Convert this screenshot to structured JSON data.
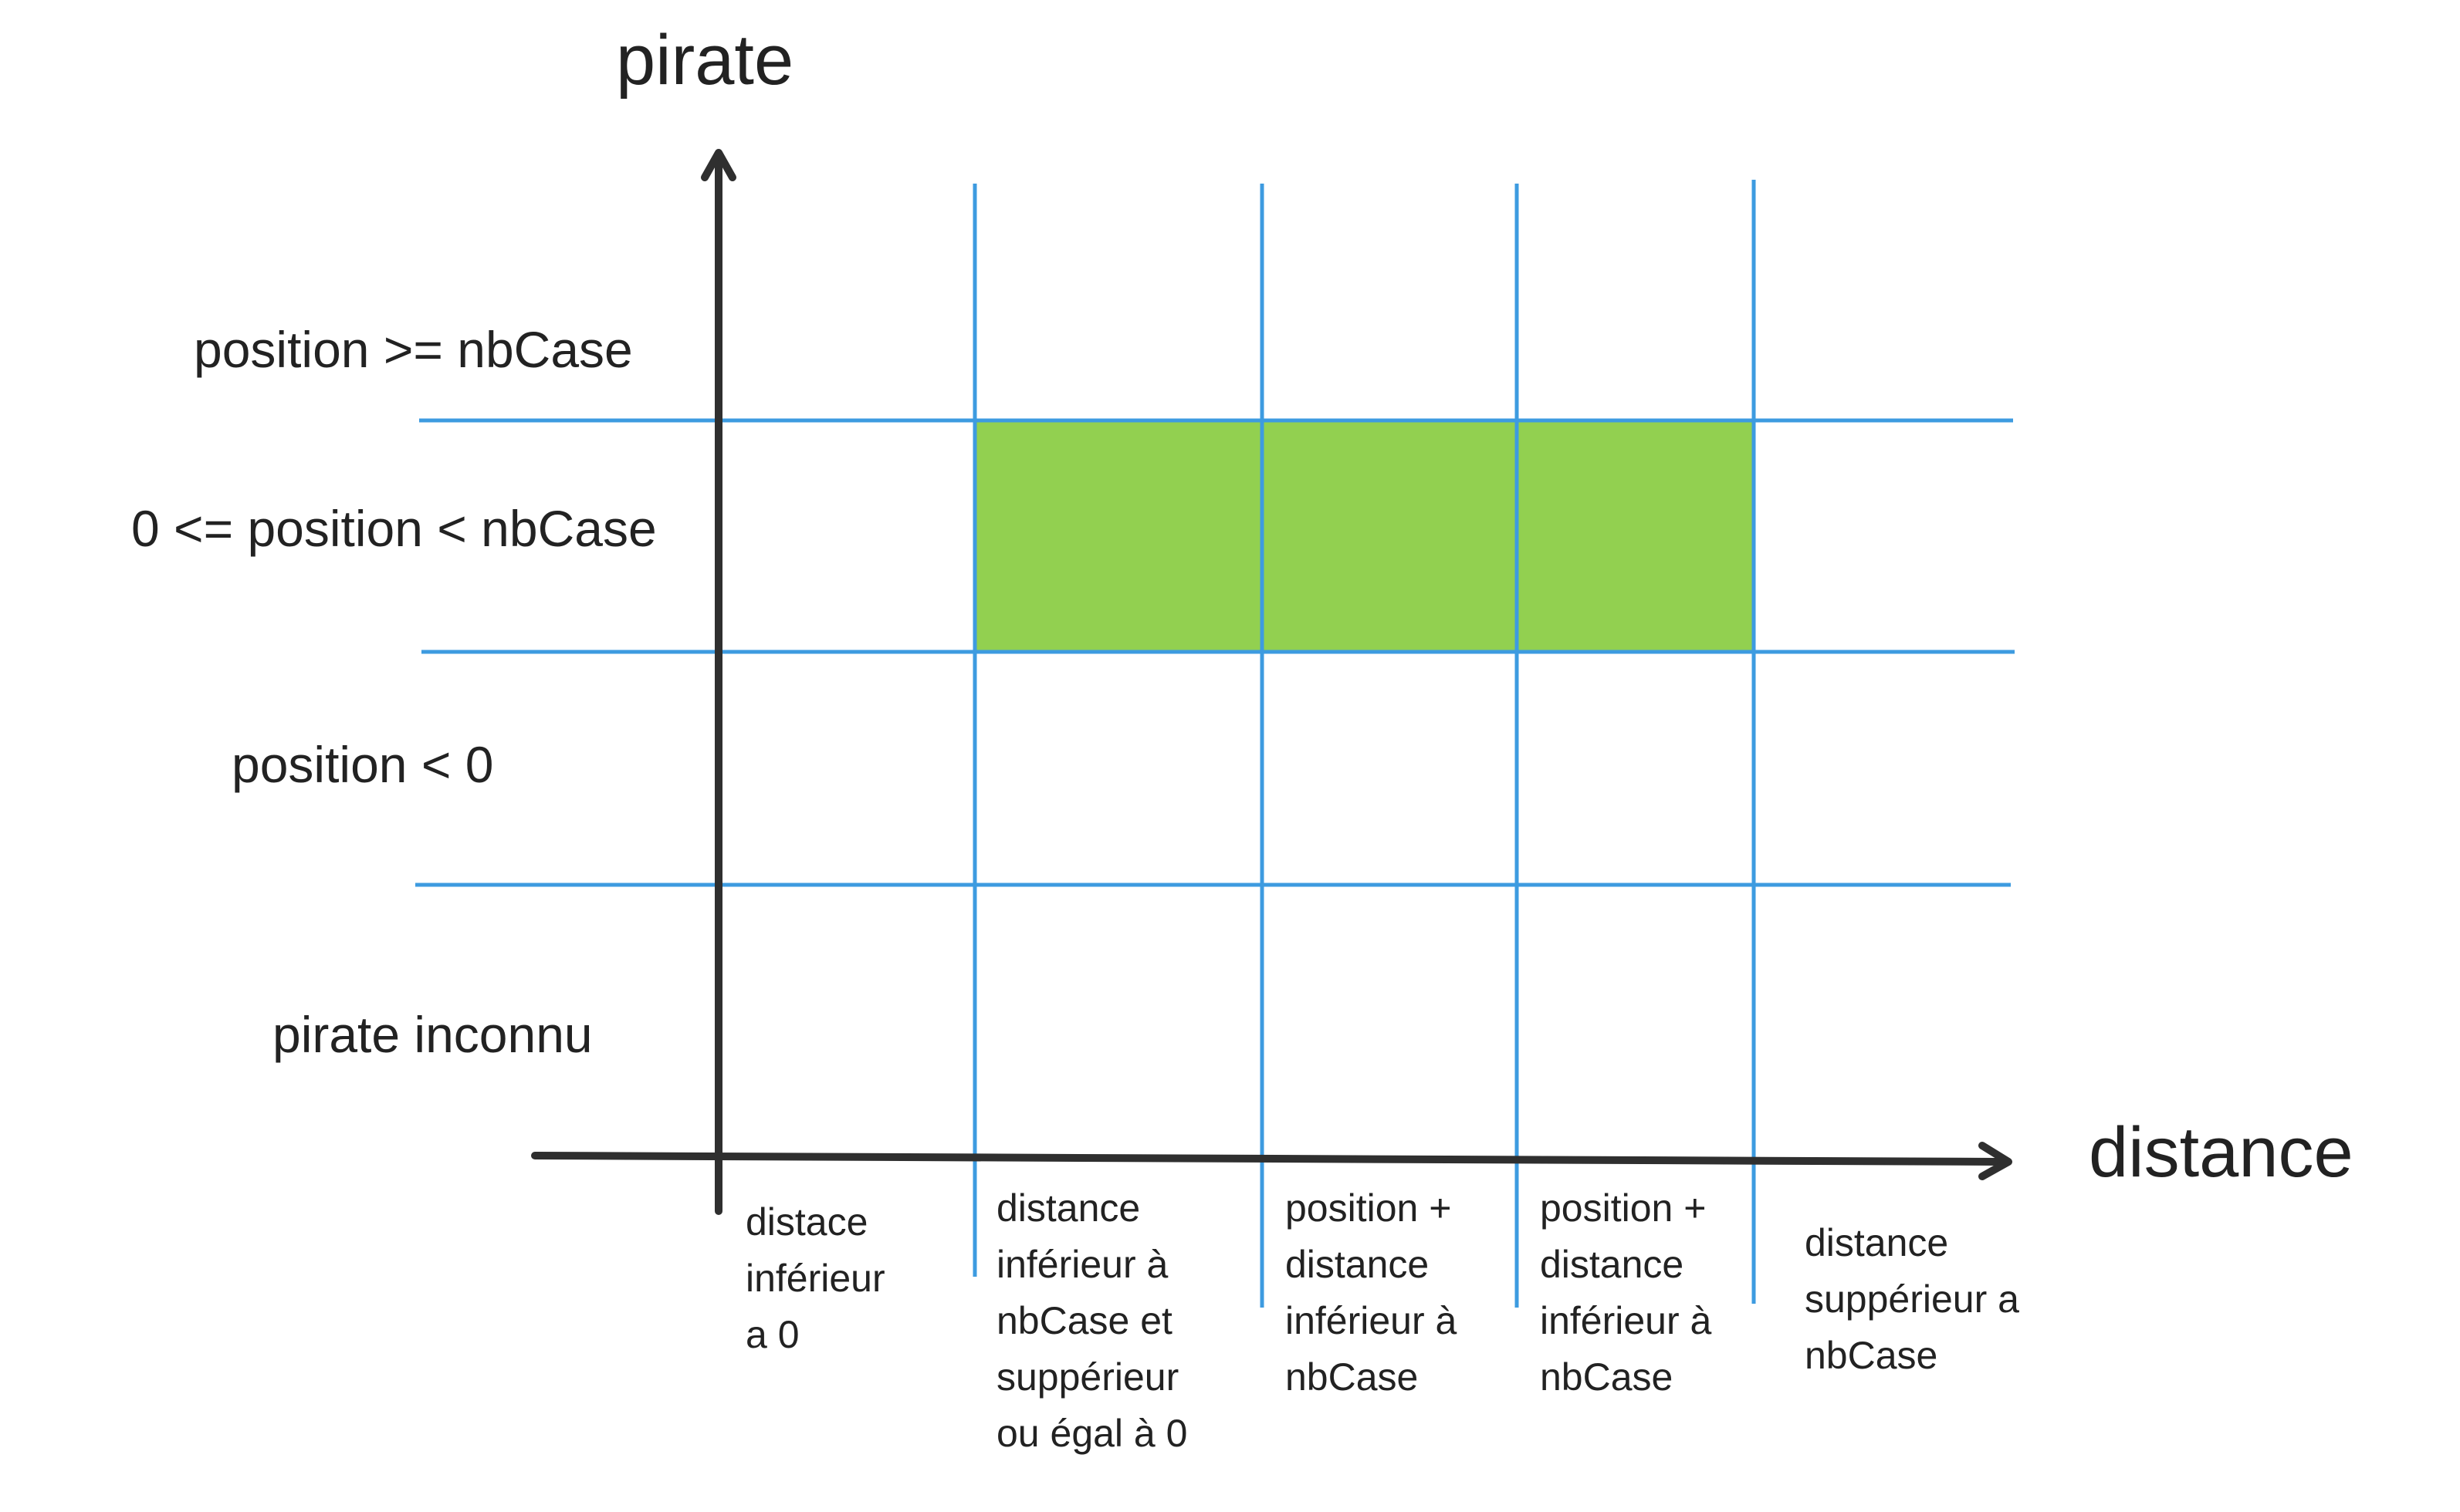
{
  "diagram": {
    "y_axis_title": "pirate",
    "x_axis_title": "distance",
    "row_labels": [
      "position >= nbCase",
      "0 <= position < nbCase",
      "position < 0",
      "pirate inconnu"
    ],
    "column_labels": [
      "distace\ninférieur\na 0",
      "distance\ninférieur à\nnbCase et\nsuppérieur\nou égal à 0",
      "position +\ndistance\ninférieur à\nnbCase",
      "position +\ndistance\ninférieur à\nnbCase",
      "distance\nsuppérieur a\nnbCase"
    ],
    "highlighted_region": {
      "row": "0 <= position < nbCase",
      "columns": [
        "distance inférieur à nbCase et suppérieur ou égal à 0",
        "position + distance inférieur à nbCase",
        "position + distance inférieur à nbCase"
      ]
    },
    "colors": {
      "axis": "#2f2f2f",
      "grid": "#3d9be0",
      "highlight": "#92d050",
      "text": "#222222"
    }
  }
}
